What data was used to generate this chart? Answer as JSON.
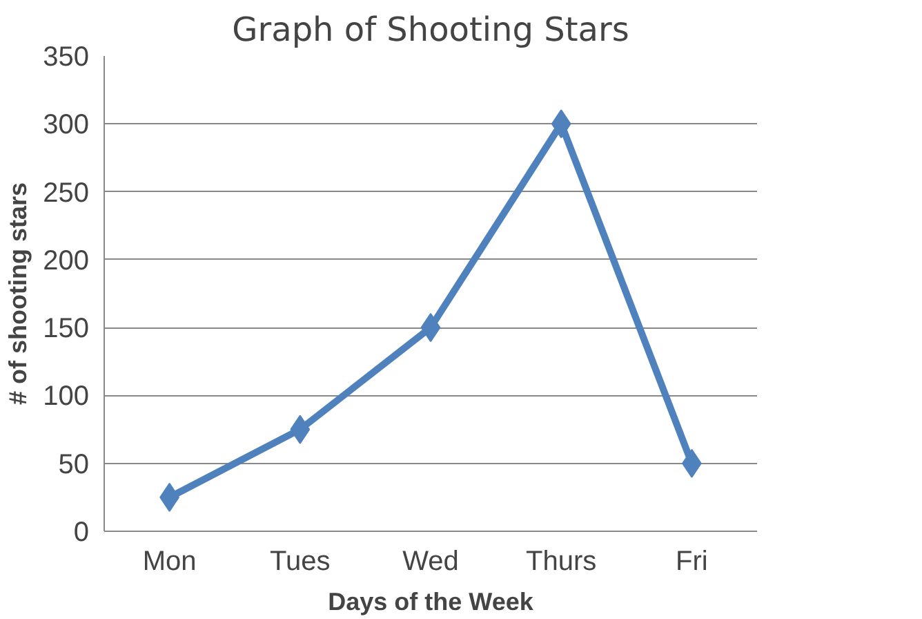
{
  "chart_data": {
    "type": "line",
    "title": "Graph of Shooting Stars",
    "xlabel": "Days of the Week",
    "ylabel": "# of shooting stars",
    "categories": [
      "Mon",
      "Tues",
      "Wed",
      "Thurs",
      "Fri"
    ],
    "series": [
      {
        "color": "#4f81bd",
        "values": [
          25,
          75,
          150,
          300,
          50
        ]
      }
    ],
    "ylim": [
      0,
      350
    ],
    "yticks": [
      0,
      50,
      100,
      150,
      200,
      250,
      300,
      350
    ],
    "grid": "y",
    "marker": "diamond",
    "line_style": "solid"
  }
}
